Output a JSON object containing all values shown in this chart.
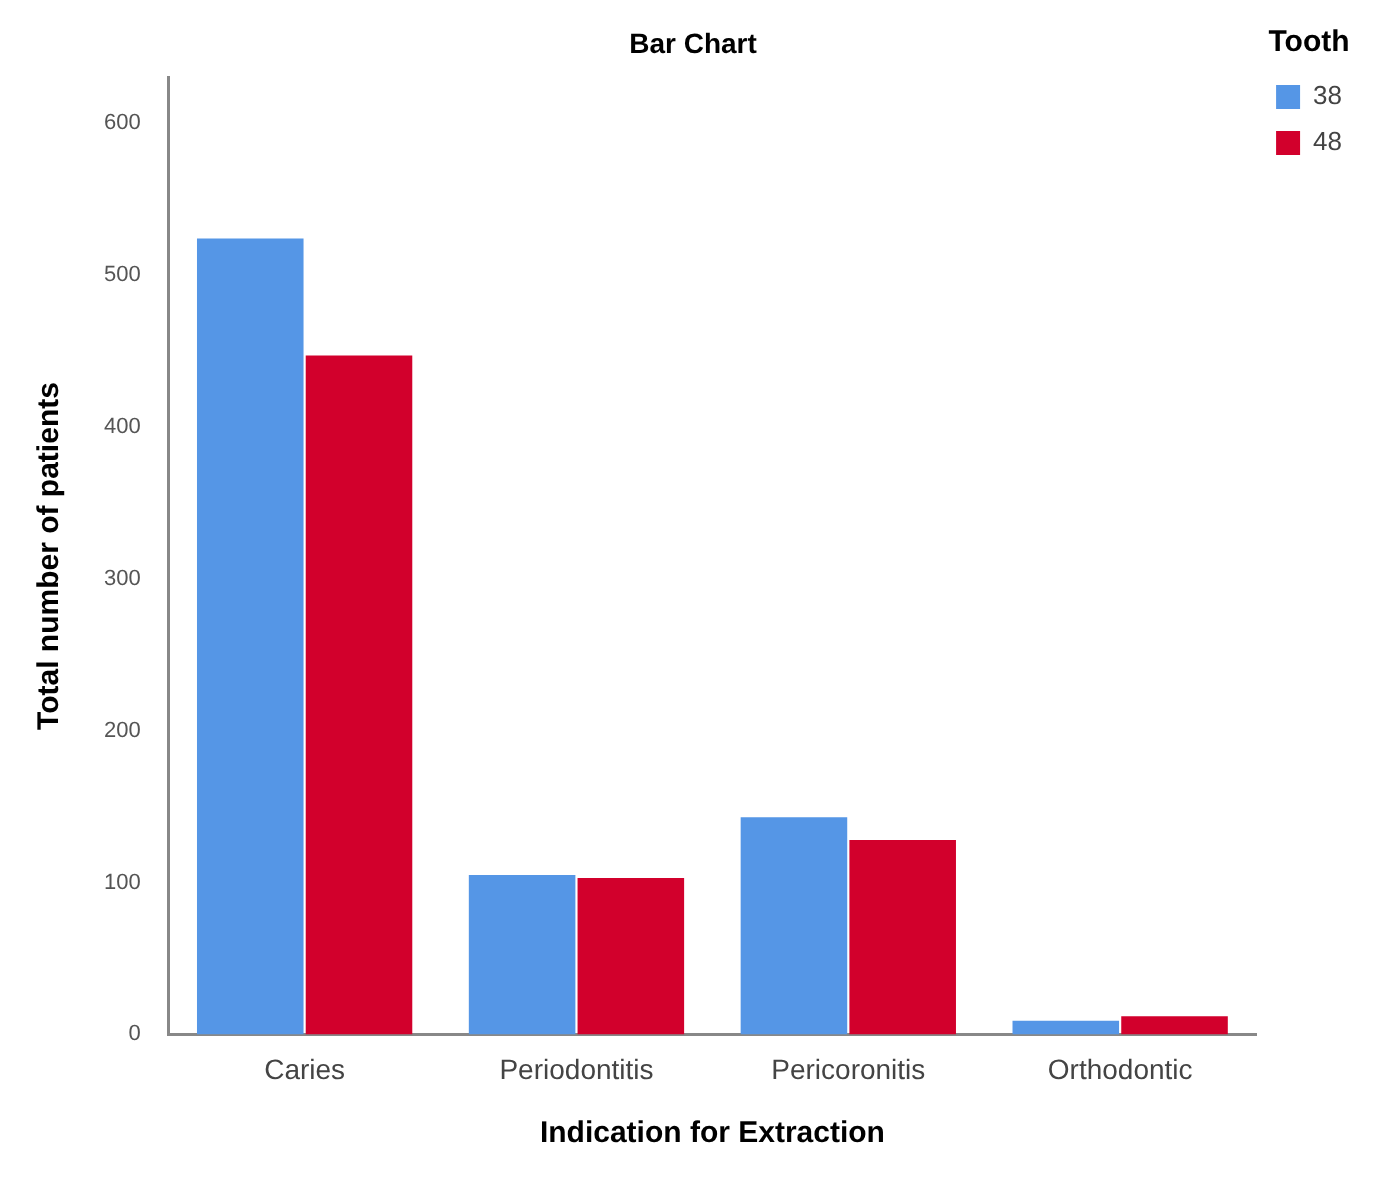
{
  "chart_data": {
    "type": "bar",
    "title": "Bar Chart",
    "xlabel": "Indication for Extraction",
    "ylabel": "Total number of patients",
    "legend_title": "Tooth",
    "legend": "top right",
    "grid": false,
    "categories": [
      "Caries",
      "Periodontitis",
      "Pericoronitis",
      "Orthodontic"
    ],
    "series": [
      {
        "name": "38",
        "color": "#5596e6",
        "values": [
          524,
          105,
          143,
          9
        ]
      },
      {
        "name": "48",
        "color": "#d2002c",
        "values": [
          447,
          103,
          128,
          12
        ]
      }
    ],
    "ylim": [
      0,
      630
    ],
    "yticks": [
      0,
      100,
      200,
      300,
      400,
      500,
      600
    ]
  }
}
